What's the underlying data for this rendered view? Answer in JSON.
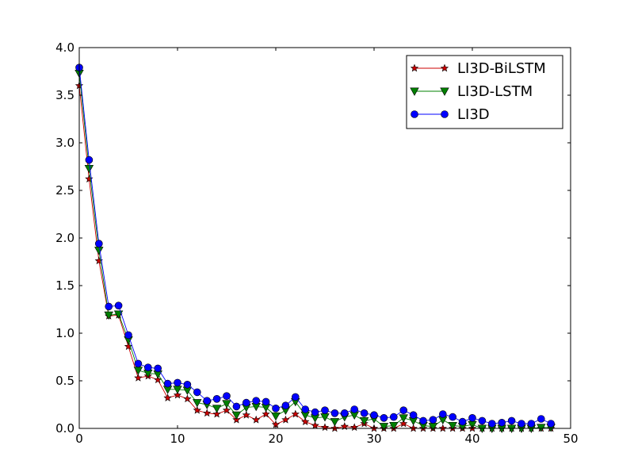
{
  "chart_data": {
    "type": "line",
    "title": "",
    "xlabel": "",
    "ylabel": "",
    "xlim": [
      0,
      50
    ],
    "ylim": [
      0.0,
      4.0
    ],
    "xticks": [
      0,
      10,
      20,
      30,
      40,
      50
    ],
    "xtick_labels": [
      "0",
      "10",
      "20",
      "30",
      "40",
      "50"
    ],
    "yticks": [
      0.0,
      0.5,
      1.0,
      1.5,
      2.0,
      2.5,
      3.0,
      3.5,
      4.0
    ],
    "ytick_labels": [
      "0.0",
      "0.5",
      "1.0",
      "1.5",
      "2.0",
      "2.5",
      "3.0",
      "3.5",
      "4.0"
    ],
    "grid": false,
    "legend_position": "top-right",
    "x": [
      0,
      1,
      2,
      3,
      4,
      5,
      6,
      7,
      8,
      9,
      10,
      11,
      12,
      13,
      14,
      15,
      16,
      17,
      18,
      19,
      20,
      21,
      22,
      23,
      24,
      25,
      26,
      27,
      28,
      29,
      30,
      31,
      32,
      33,
      34,
      35,
      36,
      37,
      38,
      39,
      40,
      41,
      42,
      43,
      44,
      45,
      46,
      47,
      48
    ],
    "series": [
      {
        "name": "LI3D-BiLSTM",
        "color": "#cc0000",
        "marker": "star",
        "values": [
          3.6,
          2.62,
          1.76,
          1.18,
          1.19,
          0.86,
          0.53,
          0.55,
          0.51,
          0.32,
          0.35,
          0.31,
          0.19,
          0.16,
          0.15,
          0.19,
          0.09,
          0.14,
          0.09,
          0.15,
          0.04,
          0.09,
          0.15,
          0.07,
          0.03,
          0.01,
          0.0,
          0.02,
          0.01,
          0.05,
          0.0,
          0.0,
          0.0,
          0.05,
          0.0,
          0.0,
          0.0,
          0.0,
          0.0,
          0.0,
          0.0,
          0.0,
          0.0,
          0.0,
          0.0,
          0.0,
          0.0,
          0.0,
          0.0
        ]
      },
      {
        "name": "LI3D-LSTM",
        "color": "#008000",
        "marker": "triangle-down",
        "values": [
          3.73,
          2.73,
          1.87,
          1.19,
          1.2,
          0.93,
          0.61,
          0.58,
          0.57,
          0.41,
          0.41,
          0.4,
          0.27,
          0.25,
          0.21,
          0.26,
          0.14,
          0.22,
          0.23,
          0.22,
          0.13,
          0.19,
          0.28,
          0.14,
          0.11,
          0.12,
          0.07,
          0.12,
          0.14,
          0.08,
          0.1,
          0.02,
          0.03,
          0.11,
          0.08,
          0.03,
          0.02,
          0.09,
          0.03,
          0.02,
          0.04,
          0.0,
          0.0,
          0.0,
          0.0,
          0.0,
          0.0,
          0.01,
          0.01
        ]
      },
      {
        "name": "LI3D",
        "color": "#0000ff",
        "marker": "circle",
        "values": [
          3.79,
          2.82,
          1.94,
          1.28,
          1.29,
          0.98,
          0.68,
          0.64,
          0.63,
          0.47,
          0.48,
          0.46,
          0.38,
          0.29,
          0.31,
          0.34,
          0.23,
          0.27,
          0.29,
          0.28,
          0.21,
          0.24,
          0.33,
          0.2,
          0.17,
          0.19,
          0.16,
          0.16,
          0.2,
          0.16,
          0.14,
          0.11,
          0.12,
          0.19,
          0.14,
          0.08,
          0.09,
          0.15,
          0.12,
          0.07,
          0.11,
          0.08,
          0.05,
          0.06,
          0.08,
          0.05,
          0.05,
          0.1,
          0.05
        ]
      }
    ]
  }
}
